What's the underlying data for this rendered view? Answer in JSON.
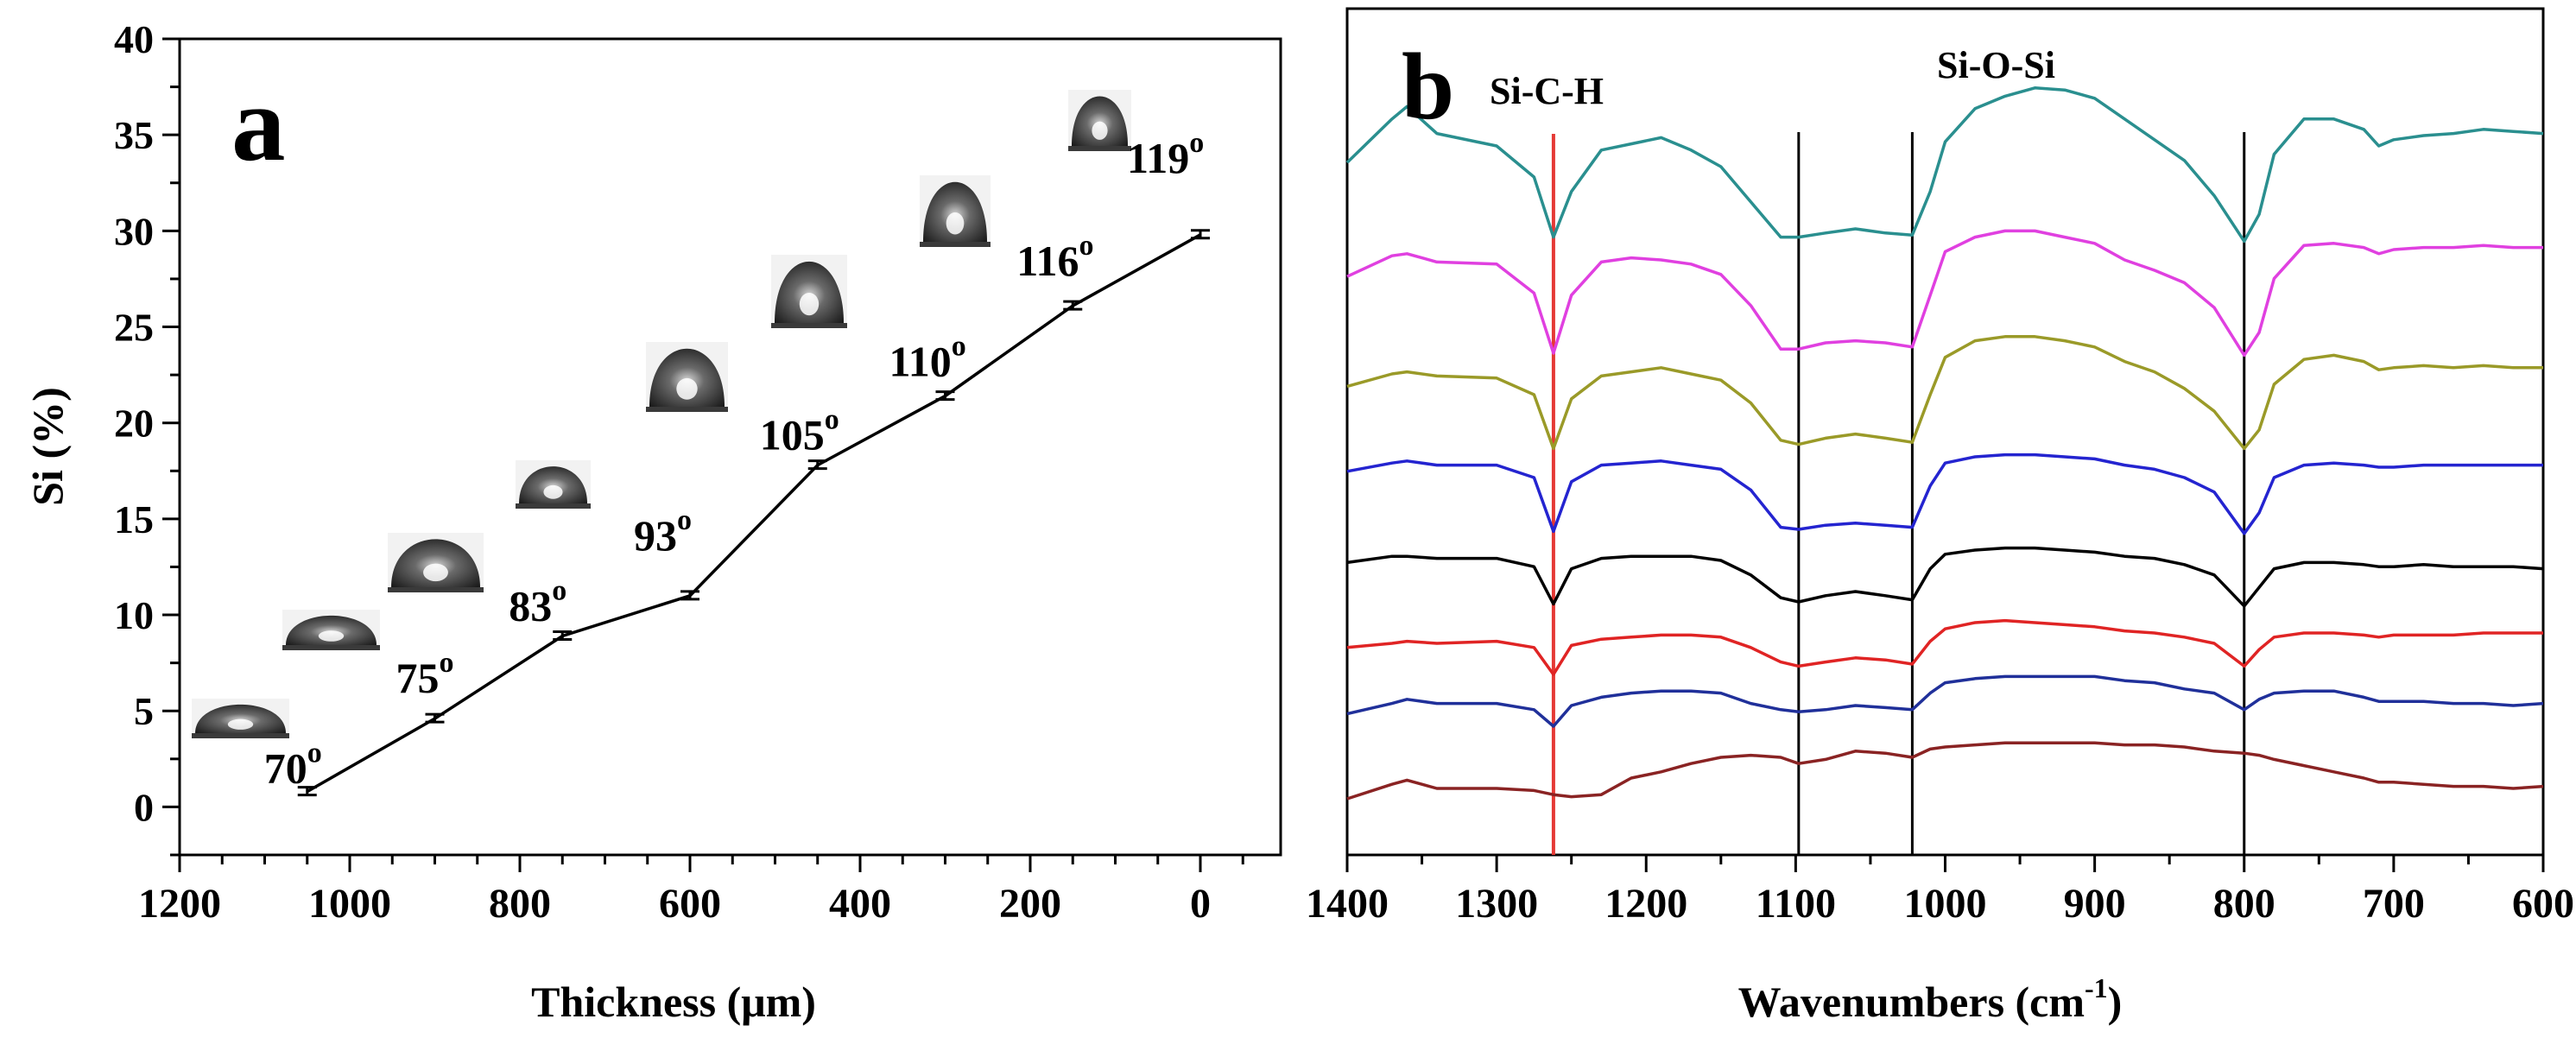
{
  "chart_data": [
    {
      "panel_label": "a",
      "type": "line",
      "xlabel": "Thickness (μm)",
      "ylabel": "Si (%)",
      "xlim": [
        1200,
        0
      ],
      "ylim": [
        -2.5,
        40
      ],
      "x_ticks": [
        "1200",
        "1000",
        "800",
        "600",
        "400",
        "200",
        "0"
      ],
      "y_ticks": [
        "0",
        "5",
        "10",
        "15",
        "20",
        "25",
        "30",
        "35",
        "40"
      ],
      "x": [
        1050,
        900,
        750,
        600,
        450,
        300,
        150,
        0
      ],
      "values": [
        0.8,
        4.6,
        8.9,
        11.0,
        17.8,
        21.4,
        26.1,
        29.8
      ],
      "annotations": [
        {
          "label": "70",
          "sup": "o"
        },
        {
          "label": "75",
          "sup": "o"
        },
        {
          "label": "83",
          "sup": "o"
        },
        {
          "label": "93",
          "sup": "o"
        },
        {
          "label": "105",
          "sup": "o"
        },
        {
          "label": "110",
          "sup": "o"
        },
        {
          "label": "116",
          "sup": "o"
        },
        {
          "label": "119",
          "sup": "o"
        }
      ],
      "droplet_angles": [
        70,
        75,
        83,
        93,
        105,
        110,
        116,
        119
      ]
    },
    {
      "panel_label": "b",
      "type": "line",
      "xlabel": "Wavenumbers (cm",
      "xlabel_sup": "-1",
      "xlabel_suffix": ")",
      "xlim": [
        1400,
        600
      ],
      "x_ticks": [
        "1400",
        "1300",
        "1200",
        "1100",
        "1000",
        "900",
        "800",
        "700",
        "600"
      ],
      "reference_lines": [
        {
          "x": 1262,
          "color": "#e53935"
        },
        {
          "x": 1098,
          "color": "#000000"
        },
        {
          "x": 1022,
          "color": "#000000"
        },
        {
          "x": 800,
          "color": "#000000"
        }
      ],
      "annotations": [
        {
          "label": "Si-C-H"
        },
        {
          "label": "Si-O-Si"
        }
      ],
      "series": [
        {
          "color": "#2a8f8f",
          "x": [
            1400,
            1370,
            1360,
            1340,
            1300,
            1275,
            1262,
            1250,
            1230,
            1210,
            1190,
            1170,
            1150,
            1130,
            1110,
            1098,
            1080,
            1060,
            1040,
            1022,
            1010,
            1000,
            980,
            960,
            940,
            920,
            900,
            880,
            860,
            840,
            820,
            800,
            790,
            780,
            760,
            740,
            720,
            710,
            700,
            680,
            660,
            640,
            620,
            600
          ],
          "y": [
            33.2,
            35.3,
            35.9,
            34.6,
            34.0,
            32.5,
            29.6,
            31.8,
            33.8,
            34.1,
            34.4,
            33.8,
            33.0,
            31.3,
            29.6,
            29.6,
            29.8,
            30.0,
            29.8,
            29.7,
            31.8,
            34.2,
            35.8,
            36.4,
            36.8,
            36.7,
            36.3,
            35.3,
            34.3,
            33.3,
            31.6,
            29.4,
            30.7,
            33.6,
            35.3,
            35.3,
            34.8,
            34.0,
            34.3,
            34.5,
            34.6,
            34.8,
            34.7,
            34.6
          ]
        },
        {
          "color": "#e040e0",
          "x": [
            1400,
            1370,
            1360,
            1340,
            1300,
            1275,
            1262,
            1250,
            1230,
            1210,
            1190,
            1170,
            1150,
            1130,
            1110,
            1098,
            1080,
            1060,
            1040,
            1022,
            1010,
            1000,
            980,
            960,
            940,
            920,
            900,
            880,
            860,
            840,
            820,
            800,
            790,
            780,
            760,
            740,
            720,
            710,
            700,
            680,
            660,
            640,
            620,
            600
          ],
          "y": [
            27.7,
            28.7,
            28.8,
            28.4,
            28.3,
            26.9,
            24.0,
            26.8,
            28.4,
            28.6,
            28.5,
            28.3,
            27.8,
            26.3,
            24.2,
            24.2,
            24.5,
            24.6,
            24.5,
            24.3,
            26.8,
            28.9,
            29.6,
            29.9,
            29.9,
            29.6,
            29.3,
            28.5,
            28.0,
            27.4,
            26.2,
            23.9,
            25.0,
            27.6,
            29.2,
            29.3,
            29.1,
            28.8,
            29.0,
            29.1,
            29.1,
            29.2,
            29.1,
            29.1
          ]
        },
        {
          "color": "#9a9a28",
          "x": [
            1400,
            1370,
            1360,
            1340,
            1300,
            1275,
            1262,
            1250,
            1230,
            1210,
            1190,
            1170,
            1150,
            1130,
            1110,
            1098,
            1080,
            1060,
            1040,
            1022,
            1010,
            1000,
            980,
            960,
            940,
            920,
            900,
            880,
            860,
            840,
            820,
            800,
            790,
            780,
            760,
            740,
            720,
            710,
            700,
            680,
            660,
            640,
            620,
            600
          ],
          "y": [
            22.4,
            23.0,
            23.1,
            22.9,
            22.8,
            22.0,
            19.4,
            21.8,
            22.9,
            23.1,
            23.3,
            23.0,
            22.7,
            21.6,
            19.8,
            19.6,
            19.9,
            20.1,
            19.9,
            19.7,
            22.0,
            23.8,
            24.6,
            24.8,
            24.8,
            24.6,
            24.3,
            23.6,
            23.1,
            22.3,
            21.2,
            19.4,
            20.3,
            22.5,
            23.7,
            23.9,
            23.6,
            23.2,
            23.3,
            23.4,
            23.3,
            23.4,
            23.3,
            23.3
          ]
        },
        {
          "color": "#2424d0",
          "x": [
            1400,
            1370,
            1360,
            1340,
            1300,
            1275,
            1262,
            1250,
            1230,
            1210,
            1190,
            1170,
            1150,
            1130,
            1110,
            1098,
            1080,
            1060,
            1040,
            1022,
            1010,
            1000,
            980,
            960,
            940,
            920,
            900,
            880,
            860,
            840,
            820,
            800,
            790,
            780,
            760,
            740,
            720,
            710,
            700,
            680,
            660,
            640,
            620,
            600
          ],
          "y": [
            18.3,
            18.7,
            18.8,
            18.6,
            18.6,
            18.0,
            15.4,
            17.8,
            18.6,
            18.7,
            18.8,
            18.6,
            18.4,
            17.4,
            15.6,
            15.5,
            15.7,
            15.8,
            15.7,
            15.6,
            17.6,
            18.7,
            19.0,
            19.1,
            19.1,
            19.0,
            18.9,
            18.6,
            18.4,
            18.0,
            17.3,
            15.3,
            16.3,
            18.0,
            18.6,
            18.7,
            18.6,
            18.5,
            18.5,
            18.6,
            18.6,
            18.6,
            18.6,
            18.6
          ]
        },
        {
          "color": "#000000",
          "x": [
            1400,
            1370,
            1360,
            1340,
            1300,
            1275,
            1262,
            1250,
            1230,
            1210,
            1190,
            1170,
            1150,
            1130,
            1110,
            1098,
            1080,
            1060,
            1040,
            1022,
            1010,
            1000,
            980,
            960,
            940,
            920,
            900,
            880,
            860,
            840,
            820,
            800,
            790,
            780,
            760,
            740,
            720,
            710,
            700,
            680,
            660,
            640,
            620,
            600
          ],
          "y": [
            13.9,
            14.2,
            14.2,
            14.1,
            14.1,
            13.7,
            11.9,
            13.6,
            14.1,
            14.2,
            14.2,
            14.2,
            14.0,
            13.3,
            12.2,
            12.0,
            12.3,
            12.5,
            12.3,
            12.1,
            13.6,
            14.3,
            14.5,
            14.6,
            14.6,
            14.5,
            14.4,
            14.2,
            14.1,
            13.8,
            13.3,
            11.8,
            12.7,
            13.6,
            13.9,
            13.9,
            13.8,
            13.7,
            13.7,
            13.8,
            13.7,
            13.7,
            13.7,
            13.6
          ]
        },
        {
          "color": "#e02424",
          "x": [
            1400,
            1370,
            1360,
            1340,
            1300,
            1275,
            1262,
            1250,
            1230,
            1210,
            1190,
            1170,
            1150,
            1130,
            1110,
            1098,
            1080,
            1060,
            1040,
            1022,
            1010,
            1000,
            980,
            960,
            940,
            920,
            900,
            880,
            860,
            840,
            820,
            800,
            790,
            780,
            760,
            740,
            720,
            710,
            700,
            680,
            660,
            640,
            620,
            600
          ],
          "y": [
            9.8,
            10.0,
            10.1,
            10.0,
            10.1,
            9.8,
            8.5,
            9.9,
            10.2,
            10.3,
            10.4,
            10.4,
            10.3,
            9.8,
            9.1,
            8.9,
            9.1,
            9.3,
            9.2,
            9.0,
            10.1,
            10.7,
            11.0,
            11.1,
            11.0,
            10.9,
            10.8,
            10.6,
            10.5,
            10.3,
            10.0,
            8.9,
            9.7,
            10.3,
            10.5,
            10.5,
            10.4,
            10.3,
            10.4,
            10.4,
            10.4,
            10.5,
            10.5,
            10.5
          ]
        },
        {
          "color": "#20309a",
          "x": [
            1400,
            1370,
            1360,
            1340,
            1300,
            1275,
            1262,
            1250,
            1230,
            1210,
            1190,
            1170,
            1150,
            1130,
            1110,
            1098,
            1080,
            1060,
            1040,
            1022,
            1010,
            1000,
            980,
            960,
            940,
            920,
            900,
            880,
            860,
            840,
            820,
            800,
            790,
            780,
            760,
            740,
            720,
            710,
            700,
            680,
            660,
            640,
            620,
            600
          ],
          "y": [
            6.6,
            7.1,
            7.3,
            7.1,
            7.1,
            6.8,
            6.0,
            7.0,
            7.4,
            7.6,
            7.7,
            7.7,
            7.6,
            7.1,
            6.8,
            6.7,
            6.8,
            7.0,
            6.9,
            6.8,
            7.6,
            8.1,
            8.3,
            8.4,
            8.4,
            8.4,
            8.4,
            8.2,
            8.1,
            7.8,
            7.6,
            6.8,
            7.3,
            7.6,
            7.7,
            7.7,
            7.4,
            7.2,
            7.2,
            7.2,
            7.1,
            7.1,
            7.0,
            7.1
          ]
        },
        {
          "color": "#8a2323",
          "x": [
            1400,
            1370,
            1360,
            1340,
            1300,
            1275,
            1262,
            1250,
            1230,
            1210,
            1190,
            1170,
            1150,
            1130,
            1110,
            1098,
            1080,
            1060,
            1040,
            1022,
            1010,
            1000,
            980,
            960,
            940,
            920,
            900,
            880,
            860,
            840,
            820,
            800,
            790,
            780,
            760,
            740,
            720,
            710,
            700,
            680,
            660,
            640,
            620,
            600
          ],
          "y": [
            2.5,
            3.2,
            3.4,
            3.0,
            3.0,
            2.9,
            2.7,
            2.6,
            2.7,
            3.5,
            3.8,
            4.2,
            4.5,
            4.6,
            4.5,
            4.2,
            4.4,
            4.8,
            4.7,
            4.5,
            4.9,
            5.0,
            5.1,
            5.2,
            5.2,
            5.2,
            5.2,
            5.1,
            5.1,
            5.0,
            4.8,
            4.7,
            4.6,
            4.4,
            4.1,
            3.8,
            3.5,
            3.3,
            3.3,
            3.2,
            3.1,
            3.1,
            3.0,
            3.1
          ]
        }
      ]
    }
  ]
}
